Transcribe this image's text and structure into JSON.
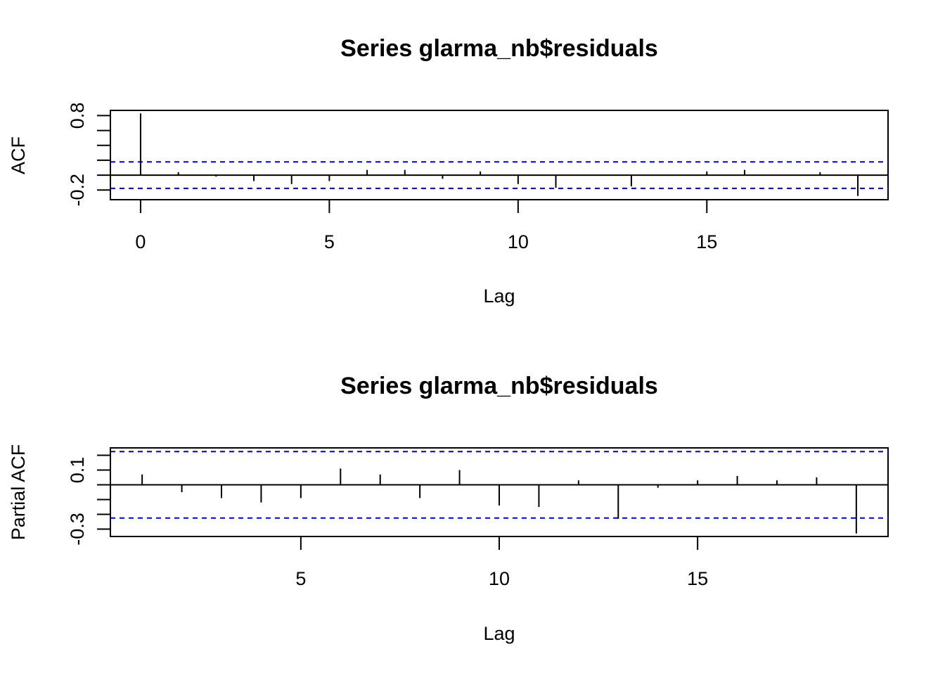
{
  "chart_data": [
    {
      "type": "bar",
      "title": "Series  glarma_nb$residuals",
      "xlabel": "Lag",
      "ylabel": "ACF",
      "xlim": [
        -0.8,
        19.8
      ],
      "ylim": [
        -0.33,
        0.87
      ],
      "xticks": [
        0,
        5,
        10,
        15
      ],
      "yticks": [
        -0.2,
        0,
        0.2,
        0.4,
        0.6,
        0.8
      ],
      "yticklabels": [
        "-0.2",
        "",
        "",
        "",
        "",
        "0.8"
      ],
      "x": [
        0,
        1,
        2,
        3,
        4,
        5,
        6,
        7,
        8,
        9,
        10,
        11,
        12,
        13,
        14,
        15,
        16,
        17,
        18,
        19
      ],
      "values": [
        0.83,
        0.04,
        -0.02,
        -0.08,
        -0.12,
        -0.08,
        0.07,
        0.07,
        -0.05,
        0.05,
        -0.12,
        -0.17,
        0.0,
        -0.15,
        -0.01,
        0.05,
        0.07,
        0.0,
        0.04,
        -0.28
      ],
      "ci": [
        0.178,
        -0.178
      ],
      "colors": {
        "bars": "#000000",
        "ci": "#0000cc",
        "axes": "#000000"
      }
    },
    {
      "type": "bar",
      "title": "Series  glarma_nb$residuals",
      "xlabel": "Lag",
      "ylabel": "Partial ACF",
      "xlim": [
        0.2,
        19.8
      ],
      "ylim": [
        -0.35,
        0.25
      ],
      "xticks": [
        5,
        10,
        15
      ],
      "yticks": [
        -0.3,
        -0.2,
        -0.1,
        0,
        0.1,
        0.2
      ],
      "yticklabels": [
        "-0.3",
        "",
        "",
        "",
        "0.1",
        ""
      ],
      "x": [
        1,
        2,
        3,
        4,
        5,
        6,
        7,
        8,
        9,
        10,
        11,
        12,
        13,
        14,
        15,
        16,
        17,
        18,
        19
      ],
      "values": [
        0.07,
        -0.05,
        -0.09,
        -0.12,
        -0.09,
        0.11,
        0.07,
        -0.09,
        0.1,
        -0.14,
        -0.15,
        0.03,
        -0.23,
        -0.02,
        0.03,
        0.06,
        0.03,
        0.05,
        -0.33
      ],
      "ci": [
        0.225,
        -0.225
      ],
      "colors": {
        "bars": "#000000",
        "ci": "#0000cc",
        "axes": "#000000"
      }
    }
  ]
}
